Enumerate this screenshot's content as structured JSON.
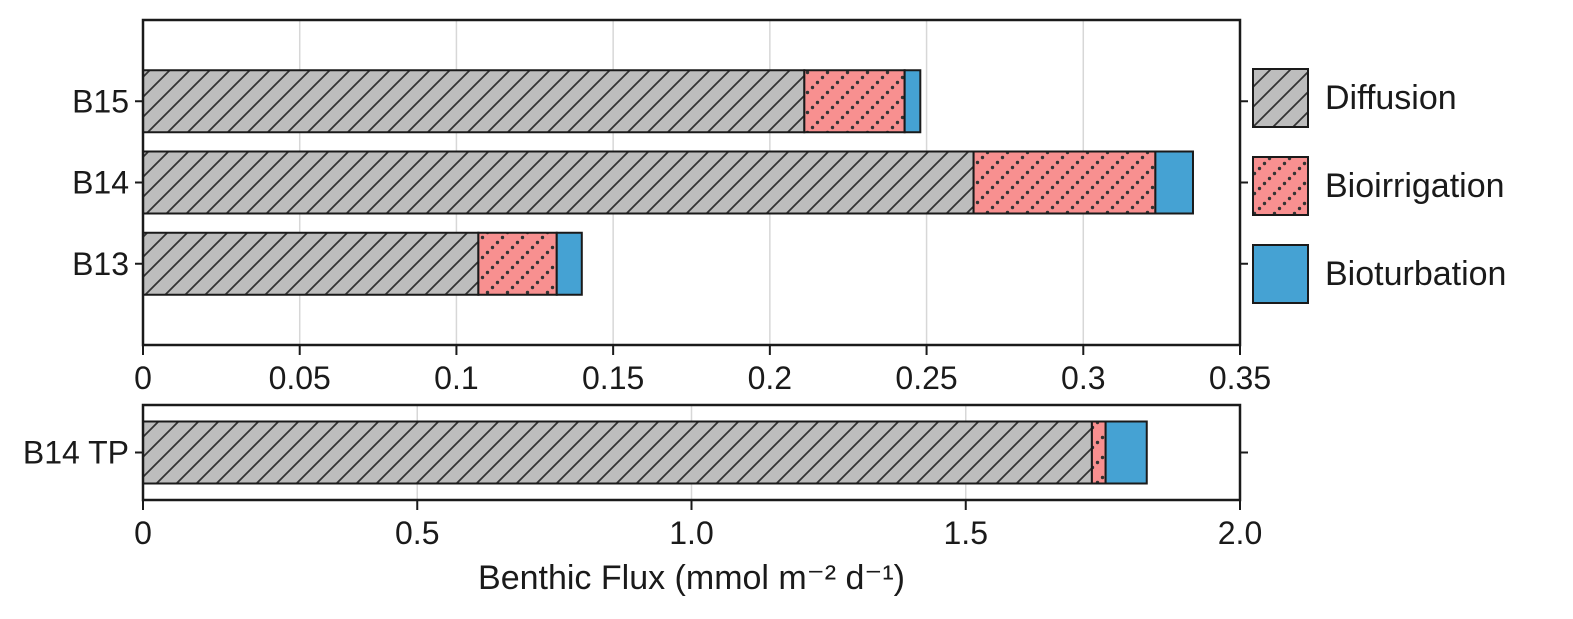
{
  "figure": {
    "xlabel": "Benthic Flux (mmol m⁻² d⁻¹)",
    "background": "#ffffff"
  },
  "style": {
    "bar_border": "#1a1a1a",
    "panel_border": "#1a1a1a",
    "hatch_color": "#333333",
    "grid_color": "#d7d7d7",
    "text_color": "#1a1a1a"
  },
  "legend": {
    "position": "right",
    "entries": [
      {
        "label": "Diffusion",
        "key": "diffusion",
        "fill": "#bdbdbd",
        "hatch": "diagonal-lines"
      },
      {
        "label": "Bioirrigation",
        "key": "bioirrigation",
        "fill": "#f89090",
        "hatch": "diagonal-dots"
      },
      {
        "label": "Bioturbation",
        "key": "bioturbation",
        "fill": "#45a2d3",
        "hatch": "none"
      }
    ]
  },
  "chart_data": [
    {
      "type": "bar",
      "orientation": "horizontal",
      "stacked": true,
      "panel": "top",
      "categories": [
        "B15",
        "B14",
        "B13"
      ],
      "series": [
        {
          "name": "Diffusion",
          "values": [
            0.211,
            0.265,
            0.107
          ]
        },
        {
          "name": "Bioirrigation",
          "values": [
            0.032,
            0.058,
            0.025
          ]
        },
        {
          "name": "Bioturbation",
          "values": [
            0.005,
            0.012,
            0.008
          ]
        }
      ],
      "xlim": [
        0,
        0.35
      ],
      "xticks": [
        0,
        0.05,
        0.1,
        0.15,
        0.2,
        0.25,
        0.3,
        0.35
      ],
      "xtick_labels": [
        "0",
        "0.05",
        "0.1",
        "0.15",
        "0.2",
        "0.25",
        "0.3",
        "0.35"
      ],
      "grid": true
    },
    {
      "type": "bar",
      "orientation": "horizontal",
      "stacked": true,
      "panel": "bottom",
      "categories": [
        "B14 TP"
      ],
      "series": [
        {
          "name": "Diffusion",
          "values": [
            1.73
          ]
        },
        {
          "name": "Bioirrigation",
          "values": [
            0.025
          ]
        },
        {
          "name": "Bioturbation",
          "values": [
            0.075
          ]
        }
      ],
      "xlim": [
        0,
        2.0
      ],
      "xticks": [
        0,
        0.5,
        1.0,
        1.5,
        2.0
      ],
      "xtick_labels": [
        "0",
        "0.5",
        "1.0",
        "1.5",
        "2.0"
      ],
      "grid": true
    }
  ]
}
